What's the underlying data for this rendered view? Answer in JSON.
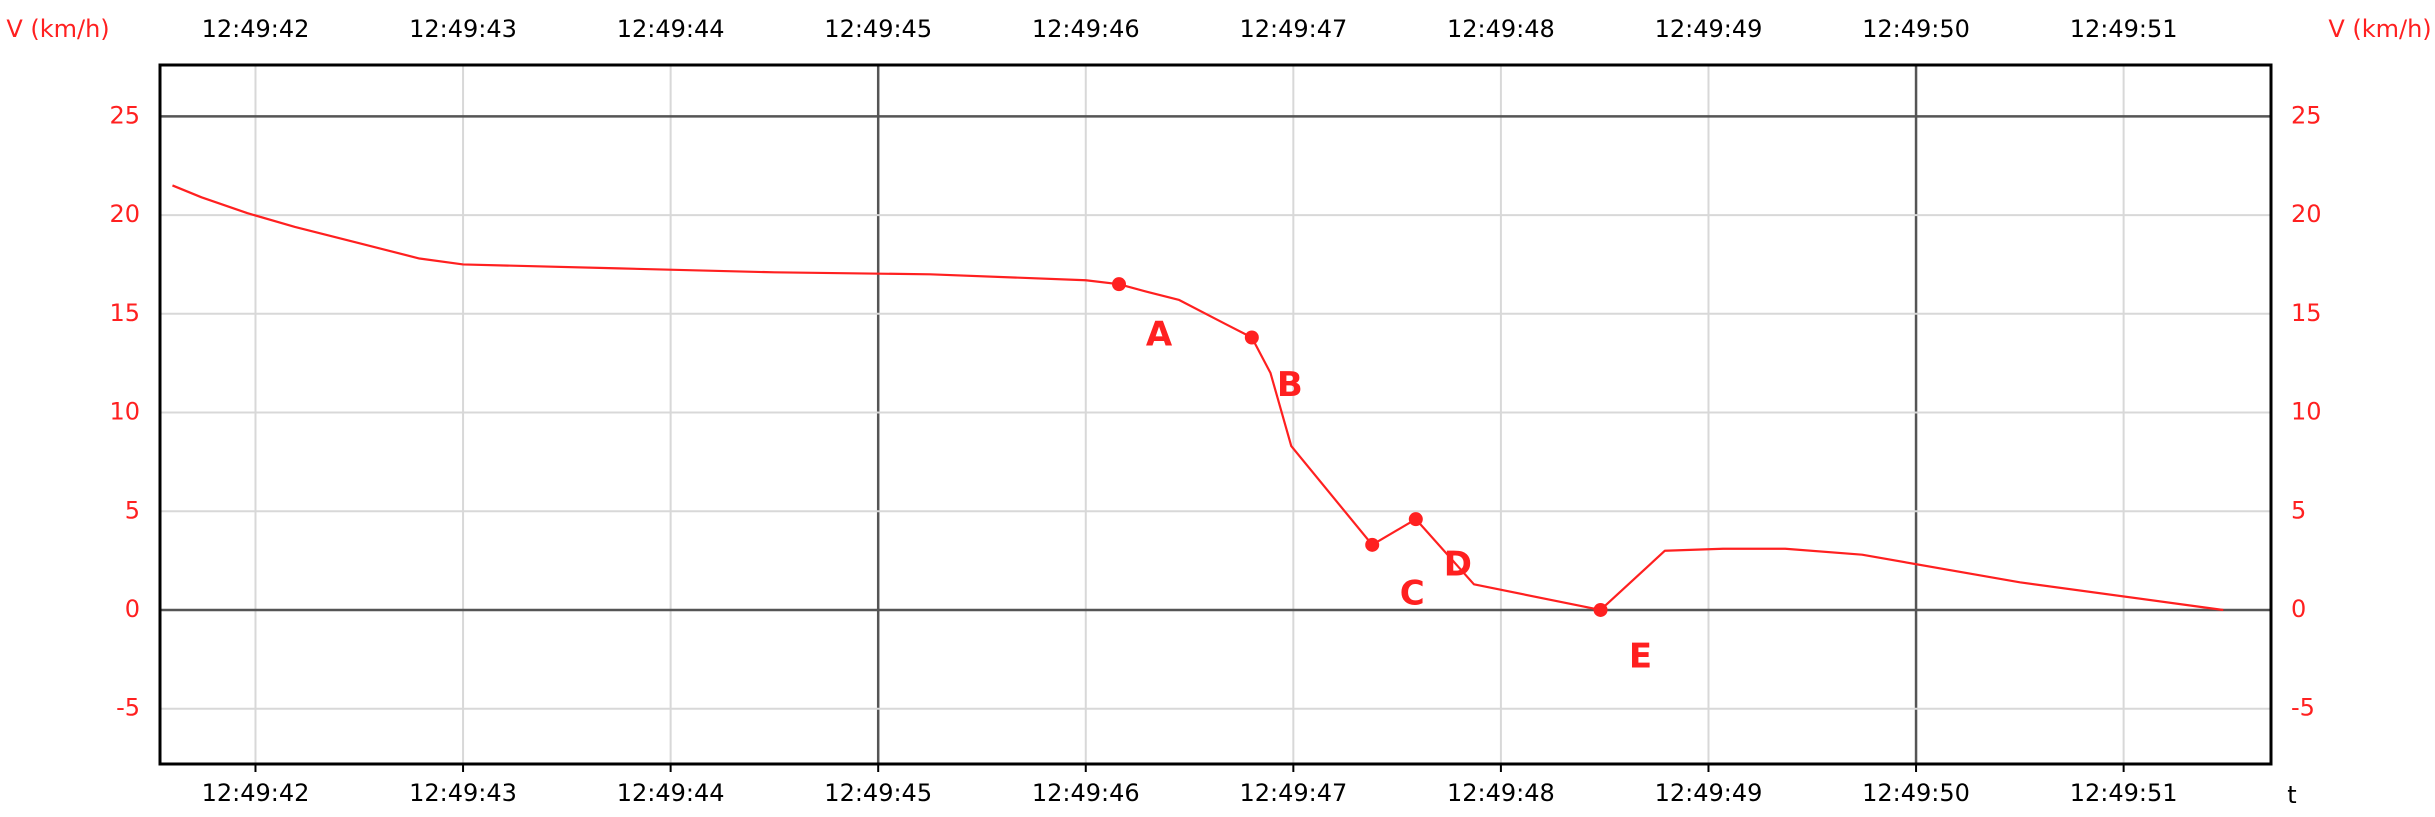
{
  "chart_data": {
    "type": "line",
    "ylabel": "V (km/h)",
    "y2label": "V (km/h)",
    "xlabel": "t",
    "xlim": [
      41.54,
      51.71
    ],
    "xticks": [
      {
        "value": 42,
        "label": "12:49:42"
      },
      {
        "value": 43,
        "label": "12:49:43"
      },
      {
        "value": 44,
        "label": "12:49:44"
      },
      {
        "value": 45,
        "label": "12:49:45"
      },
      {
        "value": 46,
        "label": "12:49:46"
      },
      {
        "value": 47,
        "label": "12:49:47"
      },
      {
        "value": 48,
        "label": "12:49:48"
      },
      {
        "value": 49,
        "label": "12:49:49"
      },
      {
        "value": 50,
        "label": "12:49:50"
      },
      {
        "value": 51,
        "label": "12:49:51"
      }
    ],
    "ylim": [
      -7.8,
      27.6
    ],
    "yticks": [
      -5,
      0,
      5,
      10,
      15,
      20,
      25
    ],
    "grid": true,
    "series": [
      {
        "color": "#ff2020",
        "x": [
          41.6,
          41.74,
          41.96,
          42.19,
          42.49,
          42.79,
          43.0,
          43.75,
          44.5,
          45.25,
          46.0,
          46.16,
          46.3,
          46.45,
          46.67,
          46.8,
          46.89,
          46.99,
          47.38,
          47.59,
          47.87,
          48.48,
          48.79,
          49.07,
          49.37,
          49.74,
          50.5,
          51.48
        ],
        "values": [
          21.5,
          20.9,
          20.1,
          19.4,
          18.6,
          17.8,
          17.5,
          17.3,
          17.1,
          17.0,
          16.7,
          16.5,
          16.1,
          15.7,
          14.5,
          13.8,
          12.0,
          8.3,
          3.3,
          4.6,
          1.3,
          0,
          3.0,
          3.1,
          3.1,
          2.8,
          1.4,
          0
        ]
      }
    ],
    "annotations": [
      {
        "text": "A",
        "x": 46.16,
        "y": 16.5
      },
      {
        "text": "B",
        "x": 46.8,
        "y": 13.8
      },
      {
        "text": "C",
        "x": 47.38,
        "y": 3.3
      },
      {
        "text": "D",
        "x": 47.59,
        "y": 4.6
      },
      {
        "text": "E",
        "x": 48.48,
        "y": 0
      }
    ]
  }
}
